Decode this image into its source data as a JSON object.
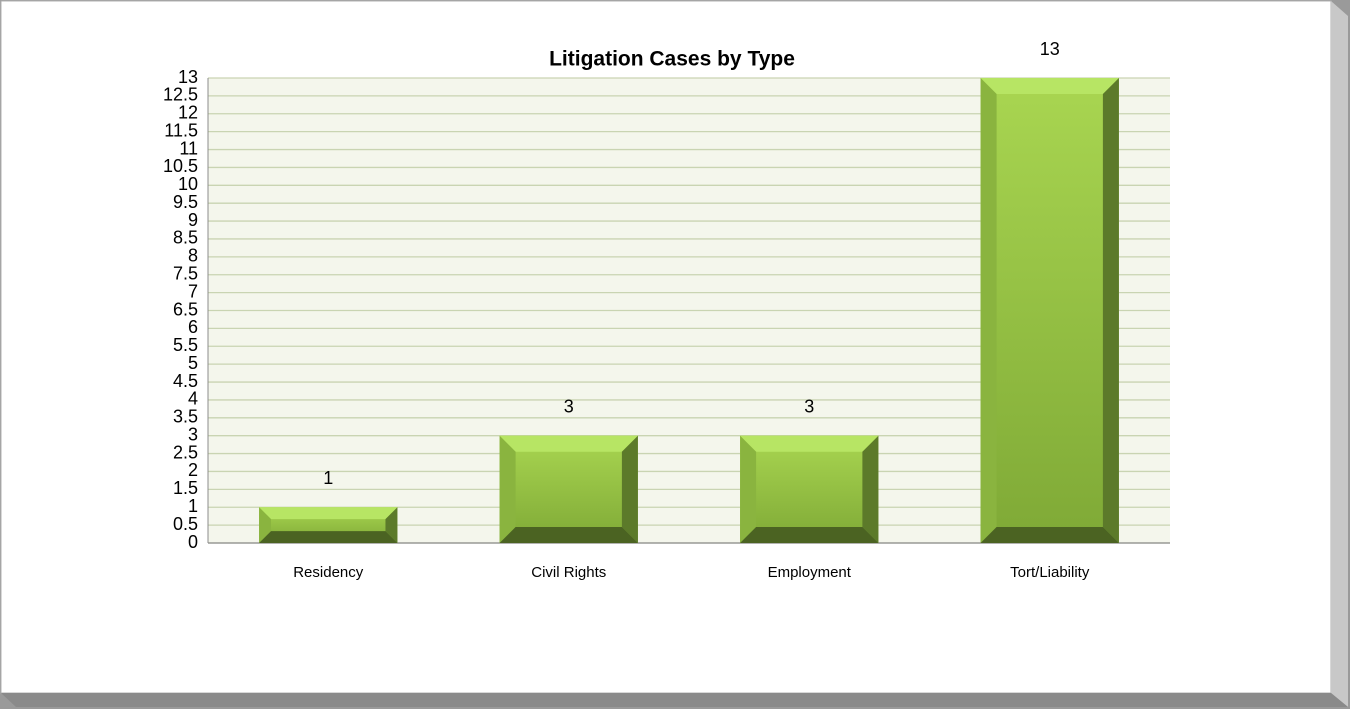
{
  "chart_data": {
    "type": "bar",
    "title": "Litigation Cases by Type",
    "categories": [
      "Residency",
      "Civil Rights",
      "Employment",
      "Tort/Liability"
    ],
    "values": [
      1,
      3,
      3,
      13
    ],
    "color": "#92c13e",
    "ylim": [
      0,
      13
    ],
    "yticks": [
      0,
      0.5,
      1,
      1.5,
      2,
      2.5,
      3,
      3.5,
      4,
      4.5,
      5,
      5.5,
      6,
      6.5,
      7,
      7.5,
      8,
      8.5,
      9,
      9.5,
      10,
      10.5,
      11,
      11.5,
      12,
      12.5,
      13
    ],
    "grid": true
  }
}
